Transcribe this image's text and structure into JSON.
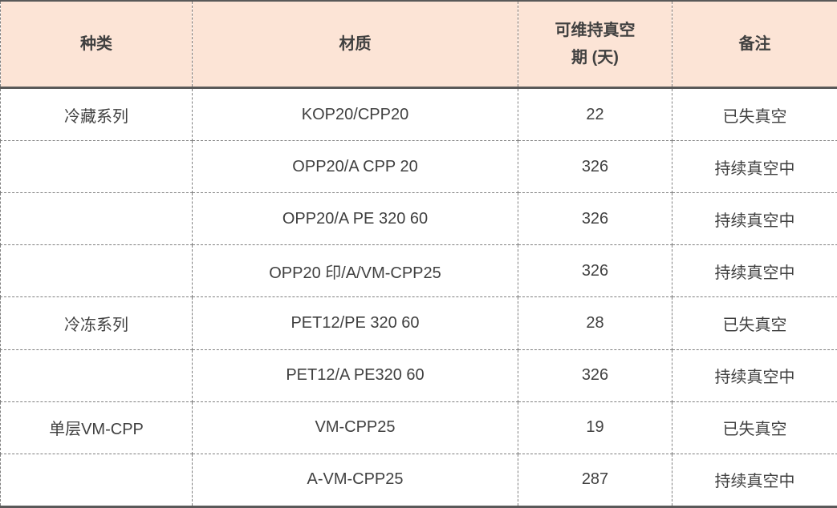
{
  "table": {
    "columns": [
      {
        "label": "种类"
      },
      {
        "label": "材质"
      },
      {
        "label": "可维持真空\n期 (天)"
      },
      {
        "label": "备注"
      }
    ],
    "rows": [
      {
        "category": "冷藏系列",
        "material": "KOP20/CPP20",
        "days": "22",
        "remark": "已失真空"
      },
      {
        "category": "",
        "material": "OPP20/A CPP 20",
        "days": "326",
        "remark": "持续真空中"
      },
      {
        "category": "",
        "material": "OPP20/A PE 320 60",
        "days": "326",
        "remark": "持续真空中"
      },
      {
        "category": "",
        "material": "OPP20 印/A/VM-CPP25",
        "days": "326",
        "remark": "持续真空中"
      },
      {
        "category": "冷冻系列",
        "material": "PET12/PE 320 60",
        "days": "28",
        "remark": "已失真空"
      },
      {
        "category": "",
        "material": "PET12/A PE320 60",
        "days": "326",
        "remark": "持续真空中"
      },
      {
        "category": "单层VM-CPP",
        "material": "VM-CPP25",
        "days": "19",
        "remark": "已失真空"
      },
      {
        "category": "",
        "material": "A-VM-CPP25",
        "days": "287",
        "remark": "持续真空中"
      }
    ],
    "colors": {
      "header_bg": "#fce4d6",
      "body_bg": "#ffffff",
      "text": "#404040",
      "border_solid": "#595959",
      "border_dashed": "#7f7f7f"
    }
  },
  "chart_data": {
    "type": "table",
    "title": "",
    "columns": [
      "种类",
      "材质",
      "可维持真空期 (天)",
      "备注"
    ],
    "rows": [
      [
        "冷藏系列",
        "KOP20/CPP20",
        22,
        "已失真空"
      ],
      [
        "",
        "OPP20/A CPP 20",
        326,
        "持续真空中"
      ],
      [
        "",
        "OPP20/A PE 320 60",
        326,
        "持续真空中"
      ],
      [
        "",
        "OPP20 印/A/VM-CPP25",
        326,
        "持续真空中"
      ],
      [
        "冷冻系列",
        "PET12/PE 320 60",
        28,
        "已失真空"
      ],
      [
        "",
        "PET12/A PE320 60",
        326,
        "持续真空中"
      ],
      [
        "单层VM-CPP",
        "VM-CPP25",
        19,
        "已失真空"
      ],
      [
        "",
        "A-VM-CPP25",
        287,
        "持续真空中"
      ]
    ]
  }
}
